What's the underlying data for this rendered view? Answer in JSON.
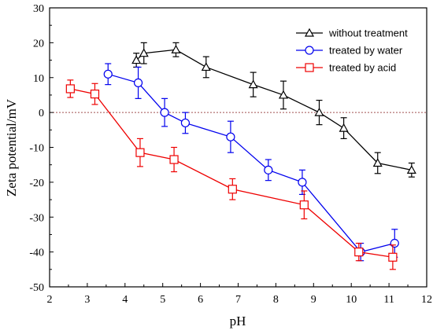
{
  "chart_data": {
    "type": "line",
    "xlabel": "pH",
    "ylabel": "Zeta potential/mV",
    "xlim": [
      2,
      12
    ],
    "ylim": [
      -50,
      30
    ],
    "xticks": [
      2,
      3,
      4,
      5,
      6,
      7,
      8,
      9,
      10,
      11,
      12
    ],
    "yticks": [
      -50,
      -40,
      -30,
      -20,
      -10,
      0,
      10,
      20,
      30
    ],
    "zero_line": {
      "y": 0,
      "color": "#a05050",
      "style": "dotted"
    },
    "legend_position": "top-right",
    "series": [
      {
        "name": "without treatment",
        "color": "#000000",
        "marker": "triangle",
        "points": [
          {
            "x": 4.3,
            "y": 15,
            "err": 2
          },
          {
            "x": 4.5,
            "y": 17,
            "err": 3
          },
          {
            "x": 5.35,
            "y": 18,
            "err": 2
          },
          {
            "x": 6.15,
            "y": 13,
            "err": 3
          },
          {
            "x": 7.4,
            "y": 8,
            "err": 3.5
          },
          {
            "x": 8.2,
            "y": 5,
            "err": 4
          },
          {
            "x": 9.15,
            "y": 0,
            "err": 3.5
          },
          {
            "x": 9.8,
            "y": -4.5,
            "err": 3
          },
          {
            "x": 10.7,
            "y": -14.5,
            "err": 3
          },
          {
            "x": 11.6,
            "y": -16.5,
            "err": 2
          }
        ]
      },
      {
        "name": "treated by water",
        "color": "#0000ee",
        "marker": "circle",
        "points": [
          {
            "x": 3.55,
            "y": 11,
            "err": 3
          },
          {
            "x": 4.35,
            "y": 8.5,
            "err": 4.5
          },
          {
            "x": 5.05,
            "y": 0,
            "err": 4
          },
          {
            "x": 5.6,
            "y": -3,
            "err": 3
          },
          {
            "x": 6.8,
            "y": -7,
            "err": 4.5
          },
          {
            "x": 7.8,
            "y": -16.5,
            "err": 3
          },
          {
            "x": 8.7,
            "y": -20,
            "err": 3.5
          },
          {
            "x": 10.25,
            "y": -40,
            "err": 2.5
          },
          {
            "x": 11.15,
            "y": -37.5,
            "err": 4
          }
        ]
      },
      {
        "name": "treated by acid",
        "color": "#ee0000",
        "marker": "square",
        "points": [
          {
            "x": 2.55,
            "y": 6.8,
            "err": 2.5
          },
          {
            "x": 3.2,
            "y": 5.3,
            "err": 3
          },
          {
            "x": 4.4,
            "y": -11.5,
            "err": 4
          },
          {
            "x": 5.3,
            "y": -13.5,
            "err": 3.5
          },
          {
            "x": 6.85,
            "y": -22,
            "err": 3
          },
          {
            "x": 8.75,
            "y": -26.5,
            "err": 4
          },
          {
            "x": 10.2,
            "y": -40,
            "err": 2.5
          },
          {
            "x": 11.1,
            "y": -41.5,
            "err": 3.5
          }
        ]
      }
    ]
  }
}
